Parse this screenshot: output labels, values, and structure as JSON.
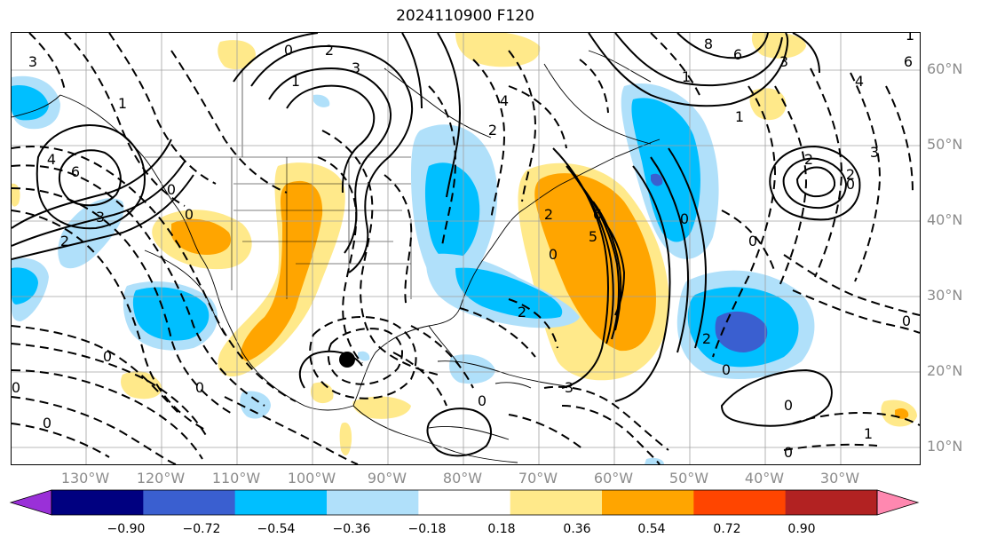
{
  "title": "2024110900 F120",
  "lat_labels": [
    "60°N",
    "50°N",
    "40°N",
    "30°N",
    "20°N",
    "10°N"
  ],
  "lon_labels": [
    "130°W",
    "120°W",
    "110°W",
    "100°W",
    "90°W",
    "80°W",
    "70°W",
    "60°W",
    "50°W",
    "40°W",
    "30°W"
  ],
  "colorbar": {
    "ticks": [
      "−0.90",
      "−0.72",
      "−0.54",
      "−0.36",
      "−0.18",
      "0.18",
      "0.36",
      "0.54",
      "0.72",
      "0.90"
    ],
    "colors": [
      "#9a30d8",
      "#000080",
      "#3a5fd0",
      "#00bfff",
      "#b0e0fa",
      "#ffffff",
      "#ffe98a",
      "#ffa500",
      "#ff4500",
      "#b22222",
      "#ff88b0"
    ]
  },
  "contour_labels": [
    "3",
    "1",
    "4",
    "6",
    "0",
    "2",
    "3",
    "3",
    "0",
    "2",
    "4",
    "8",
    "6",
    "3",
    "4",
    "3",
    "2",
    "2",
    "0",
    "0",
    "0",
    "6",
    "2",
    "0",
    "5",
    "2",
    "0",
    "3",
    "0",
    "0",
    "1",
    "0",
    "0",
    "0",
    "0",
    "0",
    "0",
    "0",
    "1",
    "1",
    "6",
    "2",
    "1",
    "1",
    "2"
  ],
  "colors": {
    "positive": [
      "#ffe98a",
      "#ffa500",
      "#ff4500"
    ],
    "negative": [
      "#b0e0fa",
      "#00bfff",
      "#3a5fd0"
    ]
  },
  "marker": "storm-center-dot"
}
